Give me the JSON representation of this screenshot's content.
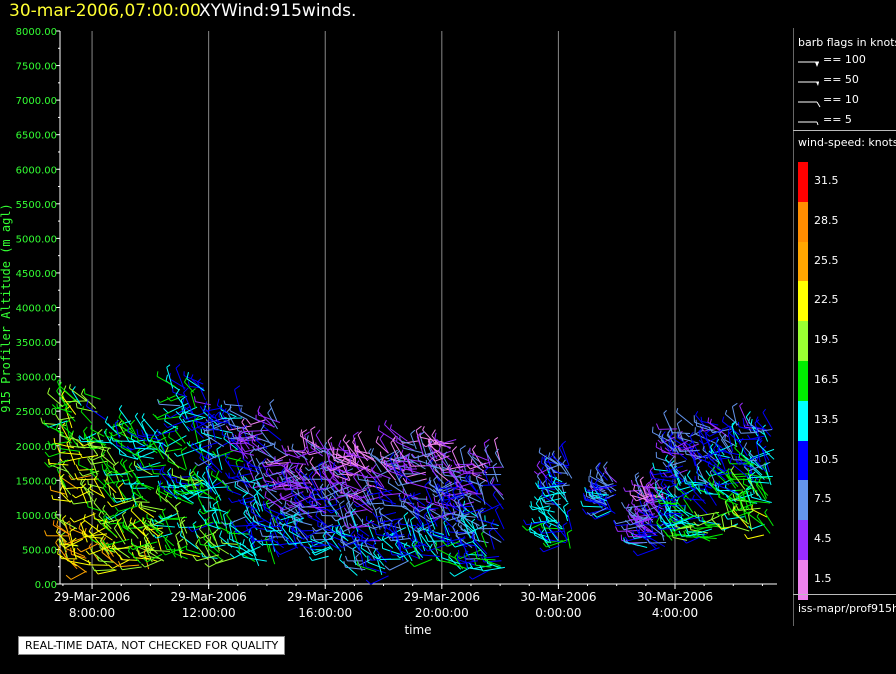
{
  "header": {
    "datetime": "30-mar-2006,07:00:00",
    "title": "XYWind:915winds."
  },
  "quality_note": "REAL-TIME DATA, NOT CHECKED FOR QUALITY",
  "colors": {
    "date_text": "#ffff33",
    "axis_text": "#33ff33",
    "grid": "#888888",
    "palette": [
      "#ee82ee",
      "#9a2cff",
      "#6495ed",
      "#0000ff",
      "#00ffff",
      "#00ee00",
      "#9aff32",
      "#ffff00",
      "#ffa500",
      "#ff8c00",
      "#ff0000"
    ]
  },
  "legend": {
    "barb_title": "barb flags in knots",
    "barb_flags": [
      {
        "label": "== 100",
        "icon": "barb-100-icon"
      },
      {
        "label": "== 50",
        "icon": "barb-50-icon"
      },
      {
        "label": "== 10",
        "icon": "barb-10-icon"
      },
      {
        "label": "== 5",
        "icon": "barb-5-icon"
      }
    ],
    "speed_title": "wind-speed: knots",
    "speed_levels": [
      "31.5",
      "28.5",
      "25.5",
      "22.5",
      "19.5",
      "16.5",
      "13.5",
      "10.5",
      "7.5",
      "4.5",
      "1.5"
    ],
    "source": "iss-mapr/prof915h"
  },
  "chart_data": {
    "type": "scatter",
    "title": "XYWind:915winds.",
    "xlabel": "time",
    "ylabel": "915 Profiler Altitude (m agl)",
    "ylim": [
      0,
      8000
    ],
    "yticks": [
      "0.00",
      "500.00",
      "1000.00",
      "1500.00",
      "2000.00",
      "2500.00",
      "3000.00",
      "3500.00",
      "4000.00",
      "4500.00",
      "5000.00",
      "5500.00",
      "6000.00",
      "6500.00",
      "7000.00",
      "7500.00",
      "8000.00"
    ],
    "xlim_hours": [
      6.9,
      31.5
    ],
    "xticks": [
      {
        "hour": 8,
        "date": "29-Mar-2006",
        "time": "8:00:00"
      },
      {
        "hour": 12,
        "date": "29-Mar-2006",
        "time": "12:00:00"
      },
      {
        "hour": 16,
        "date": "29-Mar-2006",
        "time": "16:00:00"
      },
      {
        "hour": 20,
        "date": "29-Mar-2006",
        "time": "20:00:00"
      },
      {
        "hour": 24,
        "date": "30-Mar-2006",
        "time": "0:00:00"
      },
      {
        "hour": 28,
        "date": "30-Mar-2006",
        "time": "4:00:00"
      }
    ],
    "grid": true,
    "legend_position": "right",
    "clusters": [
      {
        "hour_start": 7.0,
        "hour_end": 8.3,
        "alt_min": 150,
        "alt_max": 2700,
        "speed_low": 17,
        "speed_high": 25
      },
      {
        "hour_start": 8.3,
        "hour_end": 9.5,
        "alt_min": 200,
        "alt_max": 2400,
        "speed_low": 14,
        "speed_high": 22
      },
      {
        "hour_start": 9.5,
        "hour_end": 10.6,
        "alt_min": 200,
        "alt_max": 2200,
        "speed_low": 13,
        "speed_high": 21
      },
      {
        "hour_start": 10.6,
        "hour_end": 12.0,
        "alt_min": 350,
        "alt_max": 2900,
        "speed_low": 12,
        "speed_high": 18
      },
      {
        "hour_start": 12.0,
        "hour_end": 13.2,
        "alt_min": 350,
        "alt_max": 2600,
        "speed_low": 9,
        "speed_high": 17
      },
      {
        "hour_start": 13.2,
        "hour_end": 14.5,
        "alt_min": 250,
        "alt_max": 2400,
        "speed_low": 5,
        "speed_high": 14
      },
      {
        "hour_start": 14.5,
        "hour_end": 15.3,
        "alt_min": 500,
        "alt_max": 1900,
        "speed_low": 4,
        "speed_high": 12
      },
      {
        "hour_start": 15.3,
        "hour_end": 16.8,
        "alt_min": 400,
        "alt_max": 2000,
        "speed_low": 3,
        "speed_high": 12
      },
      {
        "hour_start": 16.8,
        "hour_end": 18.2,
        "alt_min": 100,
        "alt_max": 1900,
        "speed_low": 2,
        "speed_high": 12
      },
      {
        "hour_start": 18.2,
        "hour_end": 20.5,
        "alt_min": 300,
        "alt_max": 2100,
        "speed_low": 2,
        "speed_high": 13
      },
      {
        "hour_start": 20.5,
        "hour_end": 22.2,
        "alt_min": 200,
        "alt_max": 1800,
        "speed_low": 4,
        "speed_high": 14
      },
      {
        "hour_start": 23.6,
        "hour_end": 24.5,
        "alt_min": 500,
        "alt_max": 1800,
        "speed_low": 8,
        "speed_high": 15
      },
      {
        "hour_start": 25.5,
        "hour_end": 26.0,
        "alt_min": 1000,
        "alt_max": 1500,
        "speed_low": 7,
        "speed_high": 11
      },
      {
        "hour_start": 26.7,
        "hour_end": 27.7,
        "alt_min": 500,
        "alt_max": 1400,
        "speed_low": 3,
        "speed_high": 10
      },
      {
        "hour_start": 27.8,
        "hour_end": 29.5,
        "alt_min": 600,
        "alt_max": 2300,
        "speed_low": 6,
        "speed_high": 16
      },
      {
        "hour_start": 29.5,
        "hour_end": 31.4,
        "alt_min": 700,
        "alt_max": 2300,
        "speed_low": 8,
        "speed_high": 19
      }
    ]
  }
}
